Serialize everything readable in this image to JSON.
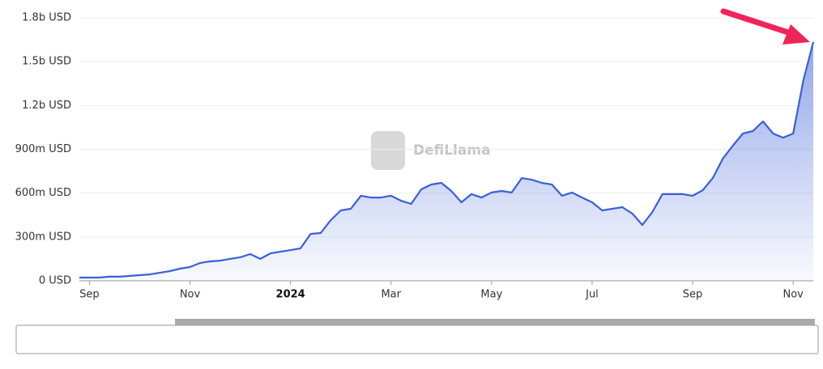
{
  "chart_data": {
    "type": "area",
    "watermark": "DefiLlama",
    "categories": [
      null,
      "Sep",
      null,
      null,
      null,
      null,
      null,
      null,
      null,
      null,
      null,
      "Nov",
      null,
      null,
      null,
      null,
      null,
      null,
      null,
      null,
      null,
      "2024",
      null,
      null,
      null,
      null,
      null,
      null,
      null,
      null,
      null,
      "Mar",
      null,
      null,
      null,
      null,
      null,
      null,
      null,
      null,
      null,
      "May",
      null,
      null,
      null,
      null,
      null,
      null,
      null,
      null,
      null,
      "Jul",
      null,
      null,
      null,
      null,
      null,
      null,
      null,
      null,
      null,
      "Sep",
      null,
      null,
      null,
      null,
      null,
      null,
      null,
      null,
      null,
      "Nov",
      null,
      null
    ],
    "values": [
      22,
      22,
      22,
      28,
      28,
      33,
      39,
      44,
      55,
      66,
      83,
      94,
      122,
      133,
      138,
      150,
      161,
      183,
      150,
      188,
      199,
      210,
      222,
      321,
      327,
      415,
      482,
      493,
      582,
      570,
      570,
      582,
      548,
      526,
      626,
      659,
      670,
      615,
      537,
      593,
      570,
      604,
      615,
      604,
      703,
      692,
      670,
      659,
      582,
      604,
      570,
      537,
      482,
      493,
      504,
      460,
      382,
      471,
      593,
      593,
      593,
      582,
      620,
      703,
      836,
      925,
      1008,
      1025,
      1091,
      1008,
      980,
      1008,
      1368,
      1634
    ],
    "color": "#3b5fd8",
    "ylim": [
      0,
      1800
    ],
    "yticks": [
      {
        "value": 0,
        "label": "0 USD"
      },
      {
        "value": 300,
        "label": "300m USD"
      },
      {
        "value": 600,
        "label": "600m USD"
      },
      {
        "value": 900,
        "label": "900m USD"
      },
      {
        "value": 1200,
        "label": "1.2b USD"
      },
      {
        "value": 1500,
        "label": "1.5b USD"
      },
      {
        "value": 1800,
        "label": "1.8b USD"
      }
    ],
    "grid": true
  }
}
